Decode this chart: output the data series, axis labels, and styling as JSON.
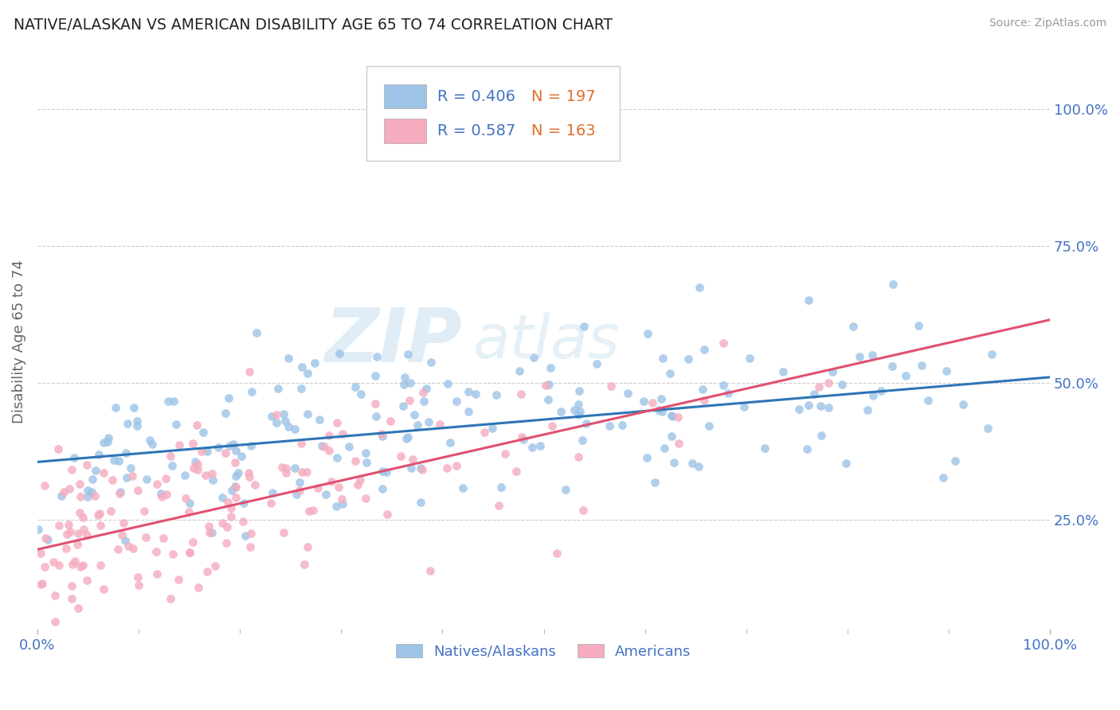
{
  "title": "NATIVE/ALASKAN VS AMERICAN DISABILITY AGE 65 TO 74 CORRELATION CHART",
  "source": "Source: ZipAtlas.com",
  "ylabel": "Disability Age 65 to 74",
  "xlim": [
    0.0,
    1.0
  ],
  "ylim": [
    0.05,
    1.1
  ],
  "xtick_labels": [
    "0.0%",
    "100.0%"
  ],
  "ytick_labels": [
    "25.0%",
    "50.0%",
    "75.0%",
    "100.0%"
  ],
  "ytick_positions": [
    0.25,
    0.5,
    0.75,
    1.0
  ],
  "grid_color": "#cccccc",
  "background_color": "#ffffff",
  "blue_color": "#9dc3e6",
  "pink_color": "#f4acbe",
  "blue_line_color": "#2e75b6",
  "pink_line_color": "#e05070",
  "legend_label_blue": "Natives/Alaskans",
  "legend_label_pink": "Americans",
  "watermark": "ZIPAtlas",
  "blue_R": 0.406,
  "blue_N": 197,
  "pink_R": 0.587,
  "pink_N": 163,
  "blue_intercept": 0.355,
  "blue_slope": 0.155,
  "pink_intercept": 0.195,
  "pink_slope": 0.42,
  "text_blue": "#4472c4",
  "text_orange": "#e07030",
  "text_gray": "#666666"
}
